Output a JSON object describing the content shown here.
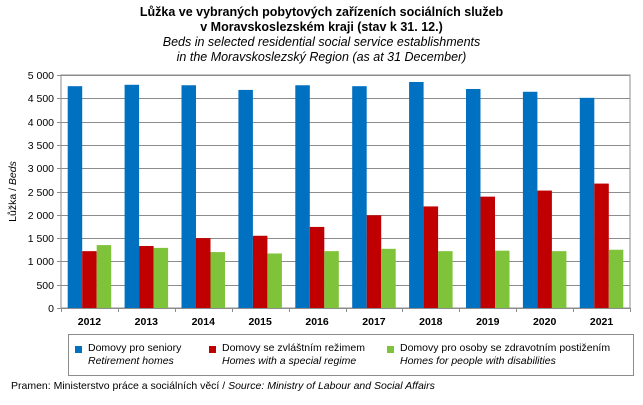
{
  "title": {
    "cs_line1": "Lůžka ve vybraných pobytových  zařízeních sociálních služeb",
    "cs_line2": "v Moravskoslezském  kraji (stav  k 31. 12.)",
    "en_line1": "Beds in selected residential social service establishments",
    "en_line2": "in the Moravskoslezský  Region (as at 31 December)"
  },
  "chart_data": {
    "type": "bar",
    "categories": [
      "2012",
      "2013",
      "2014",
      "2015",
      "2016",
      "2017",
      "2018",
      "2019",
      "2020",
      "2021"
    ],
    "series": [
      {
        "name_cs": "Domovy pro seniory",
        "name_en": "Retirement homes",
        "color": "#0070c0",
        "values": [
          4760,
          4790,
          4780,
          4680,
          4780,
          4760,
          4850,
          4700,
          4640,
          4510
        ]
      },
      {
        "name_cs": "Domovy se zvláštním režimem",
        "name_en": "Homes with a special regime",
        "color": "#c00000",
        "values": [
          1220,
          1330,
          1500,
          1550,
          1740,
          1990,
          2180,
          2390,
          2520,
          2670
        ]
      },
      {
        "name_cs": "Domovy pro osoby se zdravotním postižením",
        "name_en": "Homes for people with disabilities",
        "color": "#7ec33a",
        "values": [
          1350,
          1290,
          1200,
          1170,
          1220,
          1270,
          1220,
          1230,
          1220,
          1250
        ]
      }
    ],
    "ylabel_cs": "Lůžka / ",
    "ylabel_en": "Beds",
    "ylim": [
      0,
      5000
    ],
    "yticks": [
      0,
      500,
      1000,
      1500,
      2000,
      2500,
      3000,
      3500,
      4000,
      4500,
      5000
    ],
    "ytick_labels": [
      "0",
      "500",
      "1 000",
      "1 500",
      "2 000",
      "2 500",
      "3 000",
      "3 500",
      "4 000",
      "4 500",
      "5 000"
    ],
    "grid": true
  },
  "source": {
    "cs": "Pramen:  Ministerstvo práce a sociálních věcí / ",
    "en": "Source: Ministry of Labour and Social Affairs"
  }
}
